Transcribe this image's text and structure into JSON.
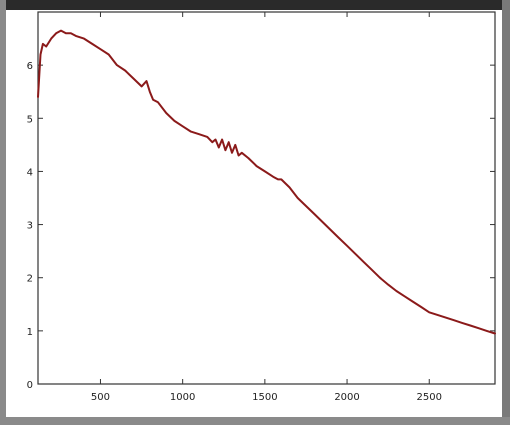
{
  "chart_data": {
    "type": "line",
    "title": "",
    "xlabel": "",
    "ylabel": "",
    "xlim": [
      120,
      2900
    ],
    "ylim": [
      0,
      7
    ],
    "grid": false,
    "x_ticks": [
      500,
      1000,
      1500,
      2000,
      2500
    ],
    "y_ticks": [
      0,
      1,
      2,
      3,
      4,
      5,
      6
    ],
    "colors": {
      "line": "#8b1a1a",
      "frame_dark": "#2a2a2a",
      "frame_gray": "#8a8a8a",
      "axis": "#333333"
    },
    "series": [
      {
        "x": [
          120,
          135,
          150,
          170,
          200,
          230,
          260,
          290,
          320,
          350,
          400,
          450,
          500,
          550,
          600,
          650,
          700,
          750,
          780,
          800,
          820,
          850,
          900,
          950,
          1000,
          1050,
          1100,
          1150,
          1180,
          1200,
          1220,
          1240,
          1260,
          1280,
          1300,
          1320,
          1340,
          1360,
          1400,
          1450,
          1500,
          1550,
          1580,
          1600,
          1650,
          1700,
          1750,
          1800,
          1850,
          1900,
          1950,
          2000,
          2050,
          2100,
          2150,
          2200,
          2250,
          2300,
          2350,
          2400,
          2450,
          2500,
          2550,
          2600,
          2650,
          2700,
          2750,
          2800,
          2850,
          2900
        ],
        "y": [
          5.4,
          6.2,
          6.4,
          6.35,
          6.5,
          6.6,
          6.65,
          6.6,
          6.6,
          6.55,
          6.5,
          6.4,
          6.3,
          6.2,
          6.0,
          5.9,
          5.75,
          5.6,
          5.7,
          5.5,
          5.35,
          5.3,
          5.1,
          4.95,
          4.85,
          4.75,
          4.7,
          4.65,
          4.55,
          4.6,
          4.45,
          4.6,
          4.4,
          4.55,
          4.35,
          4.5,
          4.3,
          4.35,
          4.25,
          4.1,
          4.0,
          3.9,
          3.85,
          3.85,
          3.7,
          3.5,
          3.35,
          3.2,
          3.05,
          2.9,
          2.75,
          2.6,
          2.45,
          2.3,
          2.15,
          2.0,
          1.87,
          1.75,
          1.65,
          1.55,
          1.45,
          1.35,
          1.3,
          1.25,
          1.2,
          1.15,
          1.1,
          1.05,
          1.0,
          0.95
        ]
      }
    ]
  }
}
